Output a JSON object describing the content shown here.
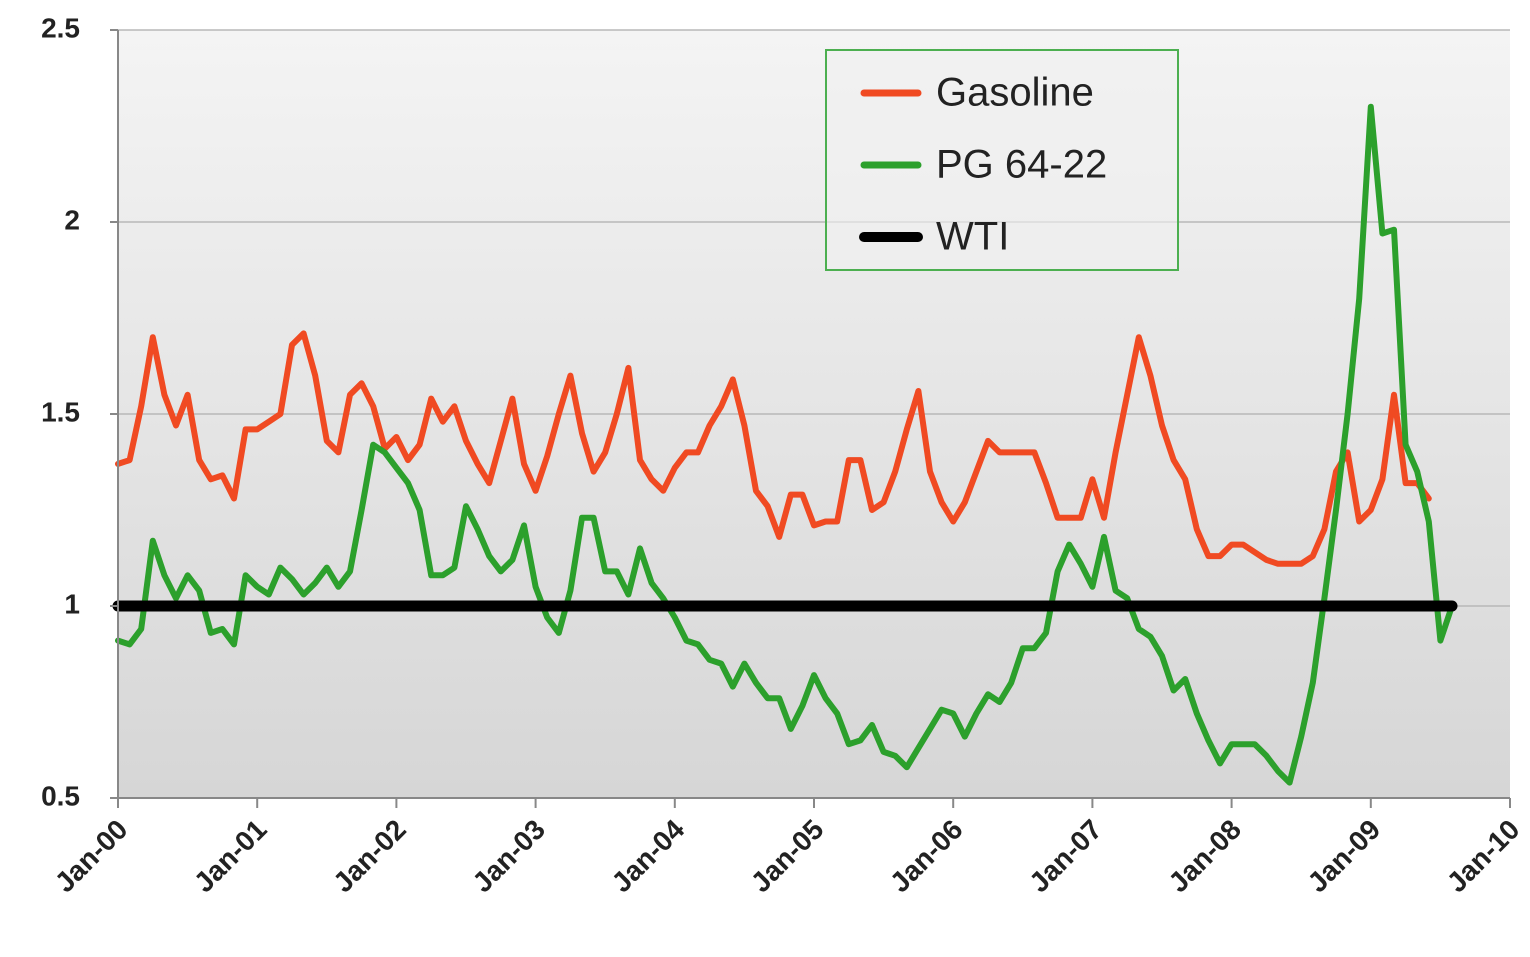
{
  "chart_data": {
    "type": "line",
    "x": [
      0,
      1,
      2,
      3,
      4,
      5,
      6,
      7,
      8,
      9,
      10,
      11,
      12,
      13,
      14,
      15,
      16,
      17,
      18,
      19,
      20,
      21,
      22,
      23,
      24,
      25,
      26,
      27,
      28,
      29,
      30,
      31,
      32,
      33,
      34,
      35,
      36,
      37,
      38,
      39,
      40,
      41,
      42,
      43,
      44,
      45,
      46,
      47,
      48,
      49,
      50,
      51,
      52,
      53,
      54,
      55,
      56,
      57,
      58,
      59,
      60,
      61,
      62,
      63,
      64,
      65,
      66,
      67,
      68,
      69,
      70,
      71,
      72,
      73,
      74,
      75,
      76,
      77,
      78,
      79,
      80,
      81,
      82,
      83,
      84,
      85,
      86,
      87,
      88,
      89,
      90,
      91,
      92,
      93,
      94,
      95,
      96,
      97,
      98,
      99,
      100,
      101,
      102,
      103,
      104,
      105,
      106,
      107,
      108,
      109,
      110,
      111,
      112,
      113,
      114,
      115
    ],
    "series": [
      {
        "name": "Gasoline",
        "color": "#f04a22",
        "values": [
          1.37,
          1.38,
          1.52,
          1.7,
          1.55,
          1.47,
          1.55,
          1.38,
          1.33,
          1.34,
          1.28,
          1.46,
          1.46,
          1.48,
          1.5,
          1.68,
          1.71,
          1.6,
          1.43,
          1.4,
          1.55,
          1.58,
          1.52,
          1.41,
          1.44,
          1.38,
          1.42,
          1.54,
          1.48,
          1.52,
          1.43,
          1.37,
          1.32,
          1.43,
          1.54,
          1.37,
          1.3,
          1.39,
          1.5,
          1.6,
          1.45,
          1.35,
          1.4,
          1.5,
          1.62,
          1.38,
          1.33,
          1.3,
          1.36,
          1.4,
          1.4,
          1.47,
          1.52,
          1.59,
          1.47,
          1.3,
          1.26,
          1.18,
          1.29,
          1.29,
          1.21,
          1.22,
          1.22,
          1.38,
          1.38,
          1.25,
          1.27,
          1.35,
          1.46,
          1.56,
          1.35,
          1.27,
          1.22,
          1.27,
          1.35,
          1.43,
          1.4,
          1.4,
          1.4,
          1.4,
          1.32,
          1.23,
          1.23,
          1.23,
          1.33,
          1.23,
          1.4,
          1.55,
          1.7,
          1.6,
          1.47,
          1.38,
          1.33,
          1.2,
          1.13,
          1.13,
          1.16,
          1.16,
          1.14,
          1.12,
          1.11,
          1.11,
          1.11,
          1.13,
          1.2,
          1.35,
          1.4,
          1.22,
          1.25,
          1.33,
          1.55,
          1.32,
          1.32,
          1.28,
          null,
          null
        ]
      },
      {
        "name": "PG 64-22",
        "color": "#2ca02c",
        "values": [
          0.91,
          0.9,
          0.94,
          1.17,
          1.08,
          1.02,
          1.08,
          1.04,
          0.93,
          0.94,
          0.9,
          1.08,
          1.05,
          1.03,
          1.1,
          1.07,
          1.03,
          1.06,
          1.1,
          1.05,
          1.09,
          1.25,
          1.42,
          1.4,
          1.36,
          1.32,
          1.25,
          1.08,
          1.08,
          1.1,
          1.26,
          1.2,
          1.13,
          1.09,
          1.12,
          1.21,
          1.05,
          0.97,
          0.93,
          1.04,
          1.23,
          1.23,
          1.09,
          1.09,
          1.03,
          1.15,
          1.06,
          1.02,
          0.97,
          0.91,
          0.9,
          0.86,
          0.85,
          0.79,
          0.85,
          0.8,
          0.76,
          0.76,
          0.68,
          0.74,
          0.82,
          0.76,
          0.72,
          0.64,
          0.65,
          0.69,
          0.62,
          0.61,
          0.58,
          0.63,
          0.68,
          0.73,
          0.72,
          0.66,
          0.72,
          0.77,
          0.75,
          0.8,
          0.89,
          0.89,
          0.93,
          1.09,
          1.16,
          1.11,
          1.05,
          1.18,
          1.04,
          1.02,
          0.94,
          0.92,
          0.87,
          0.78,
          0.81,
          0.72,
          0.65,
          0.59,
          0.64,
          0.64,
          0.64,
          0.61,
          0.57,
          0.54,
          0.66,
          0.8,
          1.02,
          1.25,
          1.5,
          1.8,
          2.3,
          1.97,
          1.98,
          1.42,
          1.35,
          1.22,
          0.91,
          1.0
        ]
      },
      {
        "name": "WTI",
        "color": "#000000",
        "values": [
          1,
          1,
          1,
          1,
          1,
          1,
          1,
          1,
          1,
          1,
          1,
          1,
          1,
          1,
          1,
          1,
          1,
          1,
          1,
          1,
          1,
          1,
          1,
          1,
          1,
          1,
          1,
          1,
          1,
          1,
          1,
          1,
          1,
          1,
          1,
          1,
          1,
          1,
          1,
          1,
          1,
          1,
          1,
          1,
          1,
          1,
          1,
          1,
          1,
          1,
          1,
          1,
          1,
          1,
          1,
          1,
          1,
          1,
          1,
          1,
          1,
          1,
          1,
          1,
          1,
          1,
          1,
          1,
          1,
          1,
          1,
          1,
          1,
          1,
          1,
          1,
          1,
          1,
          1,
          1,
          1,
          1,
          1,
          1,
          1,
          1,
          1,
          1,
          1,
          1,
          1,
          1,
          1,
          1,
          1,
          1,
          1,
          1,
          1,
          1,
          1,
          1,
          1,
          1,
          1,
          1,
          1,
          1,
          1,
          1,
          1,
          1,
          1,
          1,
          1,
          1
        ]
      }
    ],
    "xlim": [
      0,
      120
    ],
    "xticks": [
      {
        "value": 0,
        "label": "Jan-00"
      },
      {
        "value": 12,
        "label": "Jan-01"
      },
      {
        "value": 24,
        "label": "Jan-02"
      },
      {
        "value": 36,
        "label": "Jan-03"
      },
      {
        "value": 48,
        "label": "Jan-04"
      },
      {
        "value": 60,
        "label": "Jan-05"
      },
      {
        "value": 72,
        "label": "Jan-06"
      },
      {
        "value": 84,
        "label": "Jan-07"
      },
      {
        "value": 96,
        "label": "Jan-08"
      },
      {
        "value": 108,
        "label": "Jan-09"
      },
      {
        "value": 120,
        "label": "Jan-10"
      }
    ],
    "ylim": [
      0.5,
      2.5
    ],
    "yticks": [
      0.5,
      1,
      1.5,
      2,
      2.5
    ],
    "grid": true,
    "legend": "top"
  }
}
